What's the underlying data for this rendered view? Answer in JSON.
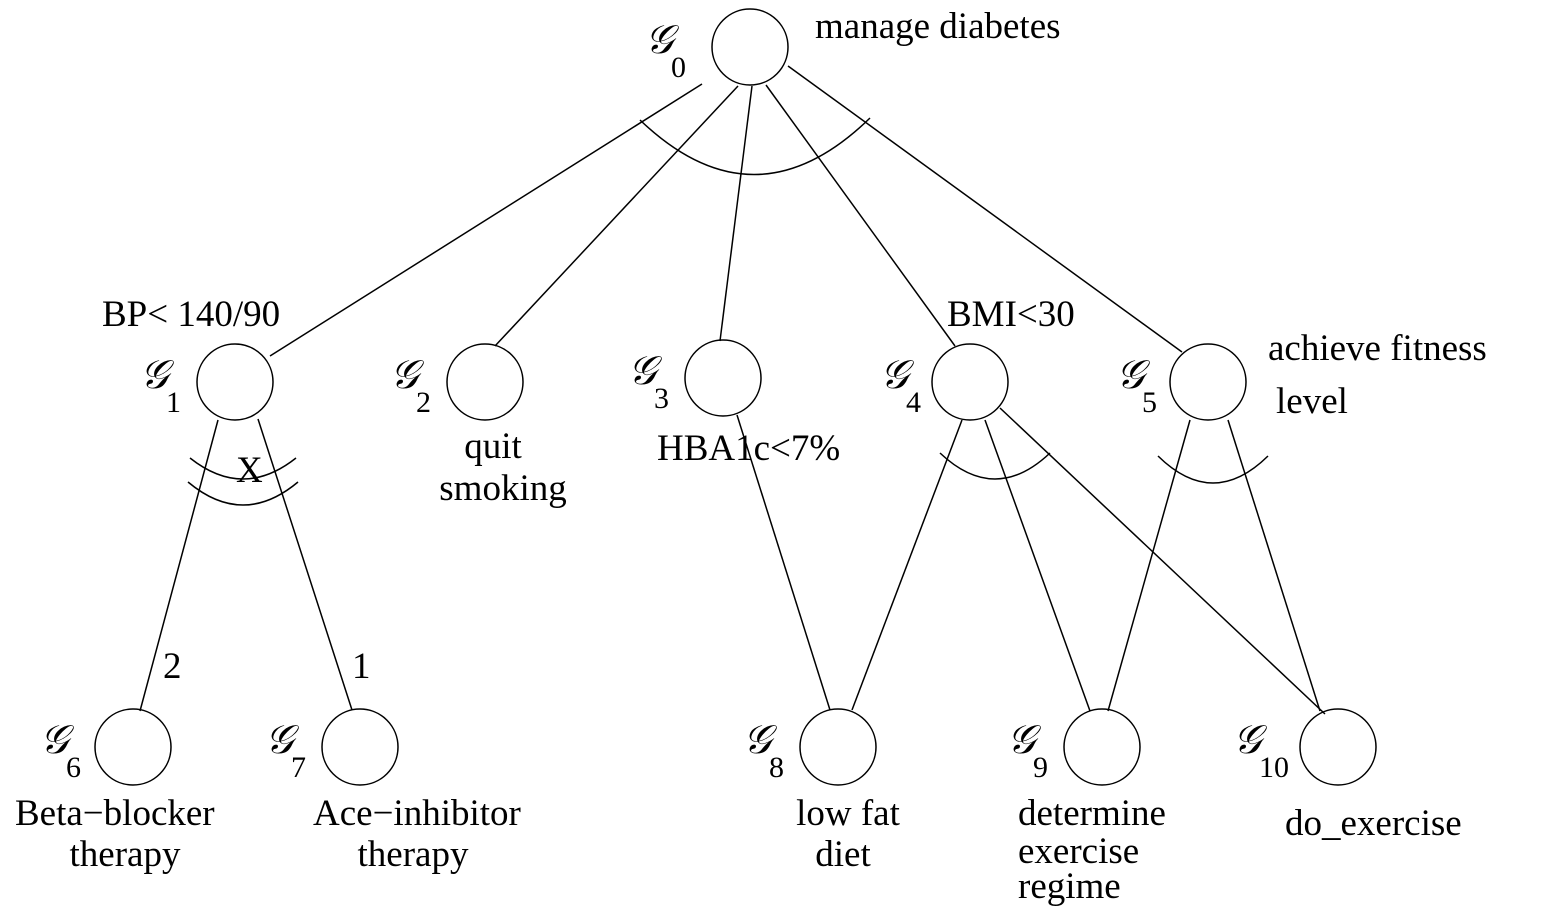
{
  "nodes": [
    {
      "symbol": "𝒢",
      "index": "0",
      "label": [
        "manage diabetes"
      ]
    },
    {
      "symbol": "𝒢",
      "index": "1",
      "label": [
        "BP< 140/90"
      ]
    },
    {
      "symbol": "𝒢",
      "index": "2",
      "label": [
        "quit",
        "smoking"
      ]
    },
    {
      "symbol": "𝒢",
      "index": "3",
      "label": [
        "HBA1c<7%"
      ]
    },
    {
      "symbol": "𝒢",
      "index": "4",
      "label": [
        "BMI<30"
      ]
    },
    {
      "symbol": "𝒢",
      "index": "5",
      "label": [
        "achieve fitness",
        "level"
      ]
    },
    {
      "symbol": "𝒢",
      "index": "6",
      "label": [
        "Beta−blocker",
        "therapy"
      ]
    },
    {
      "symbol": "𝒢",
      "index": "7",
      "label": [
        "Ace−inhibitor",
        "therapy"
      ]
    },
    {
      "symbol": "𝒢",
      "index": "8",
      "label": [
        "low fat",
        "diet"
      ]
    },
    {
      "symbol": "𝒢",
      "index": "9",
      "label": [
        "determine",
        "exercise",
        "regime"
      ]
    },
    {
      "symbol": "𝒢",
      "index": "10",
      "label": [
        "do_exercise"
      ]
    }
  ],
  "annotations": {
    "exclusive": "X",
    "priority_g6": "2",
    "priority_g7": "1"
  }
}
